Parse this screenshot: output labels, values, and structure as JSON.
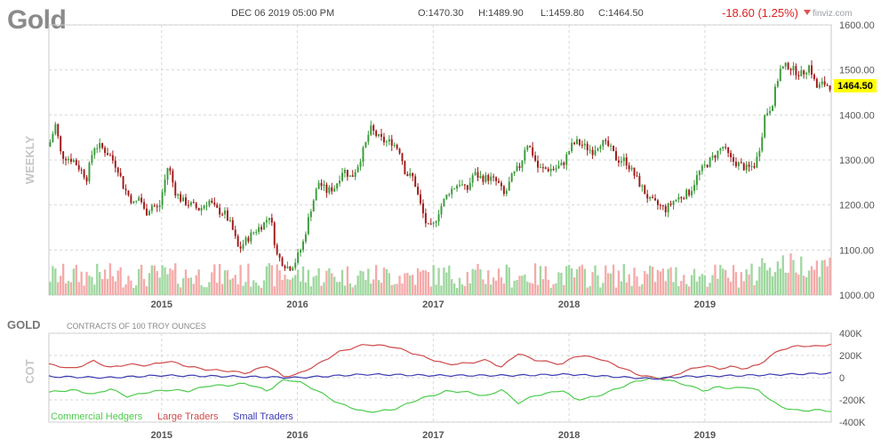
{
  "header": {
    "title": "Gold",
    "datetime": "DEC 06 2019 05:00 PM",
    "open": "O:1470.30",
    "high": "H:1489.90",
    "low": "L:1459.80",
    "close": "C:1464.50",
    "change": "-18.60 (1.25%)",
    "source": "finviz.com"
  },
  "colors": {
    "up": "#3a9a3a",
    "down": "#a01818",
    "vol_up": "#9fd79f",
    "vol_down": "#f5aaaa",
    "commercial": "#4ccc4c",
    "large": "#d04a4a",
    "small": "#3a3ab0",
    "price_tag": "#ffff00"
  },
  "chart_data": [
    {
      "type": "candlestick",
      "timeframe_label": "WEEKLY",
      "x_ticks": [
        "2015",
        "2016",
        "2017",
        "2018",
        "2019"
      ],
      "x_tick_dates": [
        2015.0,
        2016.0,
        2017.0,
        2018.0,
        2019.0
      ],
      "xlim": [
        2014.17,
        2019.93
      ],
      "y_ticks": [
        "1600.00",
        "1500.00",
        "1400.00",
        "1300.00",
        "1200.00",
        "1100.00",
        "1000.00"
      ],
      "ylim": [
        1000,
        1600
      ],
      "last_price_label": "1464.50",
      "close_price_path": [
        [
          2014.17,
          1330
        ],
        [
          2014.22,
          1380
        ],
        [
          2014.26,
          1310
        ],
        [
          2014.35,
          1300
        ],
        [
          2014.4,
          1280
        ],
        [
          2014.45,
          1260
        ],
        [
          2014.5,
          1330
        ],
        [
          2014.55,
          1330
        ],
        [
          2014.62,
          1310
        ],
        [
          2014.68,
          1280
        ],
        [
          2014.72,
          1240
        ],
        [
          2014.8,
          1200
        ],
        [
          2014.84,
          1220
        ],
        [
          2014.88,
          1180
        ],
        [
          2014.93,
          1200
        ],
        [
          2014.98,
          1190
        ],
        [
          2015.05,
          1290
        ],
        [
          2015.1,
          1230
        ],
        [
          2015.15,
          1210
        ],
        [
          2015.22,
          1200
        ],
        [
          2015.28,
          1190
        ],
        [
          2015.35,
          1210
        ],
        [
          2015.4,
          1190
        ],
        [
          2015.47,
          1180
        ],
        [
          2015.52,
          1150
        ],
        [
          2015.57,
          1100
        ],
        [
          2015.62,
          1120
        ],
        [
          2015.68,
          1140
        ],
        [
          2015.72,
          1150
        ],
        [
          2015.76,
          1160
        ],
        [
          2015.8,
          1180
        ],
        [
          2015.85,
          1090
        ],
        [
          2015.9,
          1070
        ],
        [
          2015.94,
          1060
        ],
        [
          2015.98,
          1070
        ],
        [
          2016.04,
          1110
        ],
        [
          2016.1,
          1190
        ],
        [
          2016.16,
          1250
        ],
        [
          2016.22,
          1230
        ],
        [
          2016.28,
          1240
        ],
        [
          2016.34,
          1280
        ],
        [
          2016.4,
          1260
        ],
        [
          2016.45,
          1290
        ],
        [
          2016.5,
          1330
        ],
        [
          2016.54,
          1370
        ],
        [
          2016.6,
          1350
        ],
        [
          2016.65,
          1340
        ],
        [
          2016.7,
          1340
        ],
        [
          2016.76,
          1320
        ],
        [
          2016.8,
          1270
        ],
        [
          2016.86,
          1260
        ],
        [
          2016.9,
          1210
        ],
        [
          2016.96,
          1150
        ],
        [
          2017.0,
          1150
        ],
        [
          2017.05,
          1190
        ],
        [
          2017.12,
          1230
        ],
        [
          2017.2,
          1250
        ],
        [
          2017.25,
          1230
        ],
        [
          2017.3,
          1270
        ],
        [
          2017.36,
          1260
        ],
        [
          2017.42,
          1260
        ],
        [
          2017.48,
          1250
        ],
        [
          2017.53,
          1220
        ],
        [
          2017.58,
          1260
        ],
        [
          2017.65,
          1290
        ],
        [
          2017.69,
          1340
        ],
        [
          2017.73,
          1320
        ],
        [
          2017.78,
          1280
        ],
        [
          2017.84,
          1280
        ],
        [
          2017.9,
          1280
        ],
        [
          2017.96,
          1290
        ],
        [
          2018.02,
          1330
        ],
        [
          2018.06,
          1340
        ],
        [
          2018.12,
          1330
        ],
        [
          2018.18,
          1320
        ],
        [
          2018.24,
          1340
        ],
        [
          2018.3,
          1330
        ],
        [
          2018.36,
          1300
        ],
        [
          2018.42,
          1300
        ],
        [
          2018.48,
          1270
        ],
        [
          2018.54,
          1240
        ],
        [
          2018.6,
          1210
        ],
        [
          2018.66,
          1200
        ],
        [
          2018.72,
          1190
        ],
        [
          2018.78,
          1210
        ],
        [
          2018.84,
          1220
        ],
        [
          2018.9,
          1230
        ],
        [
          2018.96,
          1270
        ],
        [
          2019.02,
          1290
        ],
        [
          2019.08,
          1310
        ],
        [
          2019.14,
          1330
        ],
        [
          2019.2,
          1300
        ],
        [
          2019.26,
          1290
        ],
        [
          2019.32,
          1280
        ],
        [
          2019.38,
          1290
        ],
        [
          2019.42,
          1340
        ],
        [
          2019.45,
          1400
        ],
        [
          2019.5,
          1420
        ],
        [
          2019.56,
          1500
        ],
        [
          2019.62,
          1510
        ],
        [
          2019.66,
          1500
        ],
        [
          2019.72,
          1490
        ],
        [
          2019.78,
          1510
        ],
        [
          2019.83,
          1460
        ],
        [
          2019.88,
          1470
        ],
        [
          2019.93,
          1464.5
        ]
      ]
    },
    {
      "type": "line",
      "panel_title": "GOLD",
      "subtitle": "CONTRACTS OF 100 TROY OUNCES",
      "side_label": "COT",
      "y_ticks": [
        "400K",
        "200K",
        "0",
        "-200K",
        "-400K"
      ],
      "ylim": [
        -400,
        400
      ],
      "x_ticks": [
        "2015",
        "2016",
        "2017",
        "2018",
        "2019"
      ],
      "x_tick_dates": [
        2015.0,
        2016.0,
        2017.0,
        2018.0,
        2019.0
      ],
      "xlim": [
        2014.17,
        2019.93
      ],
      "series": [
        {
          "name": "Commercial Hedgers",
          "points": [
            [
              2014.17,
              -130
            ],
            [
              2014.35,
              -110
            ],
            [
              2014.5,
              -150
            ],
            [
              2014.62,
              -100
            ],
            [
              2014.75,
              -170
            ],
            [
              2014.9,
              -130
            ],
            [
              2015.05,
              -110
            ],
            [
              2015.2,
              -120
            ],
            [
              2015.35,
              -70
            ],
            [
              2015.5,
              -70
            ],
            [
              2015.62,
              -50
            ],
            [
              2015.78,
              -120
            ],
            [
              2015.9,
              -20
            ],
            [
              2016.0,
              -30
            ],
            [
              2016.15,
              -120
            ],
            [
              2016.3,
              -230
            ],
            [
              2016.5,
              -310
            ],
            [
              2016.7,
              -290
            ],
            [
              2016.9,
              -190
            ],
            [
              2017.0,
              -160
            ],
            [
              2017.1,
              -120
            ],
            [
              2017.25,
              -130
            ],
            [
              2017.4,
              -170
            ],
            [
              2017.5,
              -100
            ],
            [
              2017.62,
              -230
            ],
            [
              2017.75,
              -160
            ],
            [
              2017.85,
              -140
            ],
            [
              2017.95,
              -110
            ],
            [
              2018.05,
              -200
            ],
            [
              2018.2,
              -170
            ],
            [
              2018.35,
              -100
            ],
            [
              2018.5,
              -30
            ],
            [
              2018.62,
              0
            ],
            [
              2018.72,
              -20
            ],
            [
              2018.85,
              -60
            ],
            [
              2019.0,
              -120
            ],
            [
              2019.1,
              -80
            ],
            [
              2019.2,
              -100
            ],
            [
              2019.3,
              -80
            ],
            [
              2019.4,
              -120
            ],
            [
              2019.55,
              -260
            ],
            [
              2019.7,
              -300
            ],
            [
              2019.8,
              -290
            ],
            [
              2019.93,
              -300
            ]
          ]
        },
        {
          "name": "Large Traders",
          "points": [
            [
              2014.17,
              120
            ],
            [
              2014.35,
              80
            ],
            [
              2014.5,
              150
            ],
            [
              2014.62,
              90
            ],
            [
              2014.75,
              120
            ],
            [
              2014.9,
              110
            ],
            [
              2015.05,
              150
            ],
            [
              2015.2,
              100
            ],
            [
              2015.35,
              70
            ],
            [
              2015.5,
              60
            ],
            [
              2015.62,
              40
            ],
            [
              2015.78,
              110
            ],
            [
              2015.9,
              10
            ],
            [
              2016.0,
              30
            ],
            [
              2016.15,
              120
            ],
            [
              2016.3,
              230
            ],
            [
              2016.5,
              300
            ],
            [
              2016.7,
              280
            ],
            [
              2016.9,
              200
            ],
            [
              2017.0,
              160
            ],
            [
              2017.1,
              120
            ],
            [
              2017.25,
              130
            ],
            [
              2017.4,
              160
            ],
            [
              2017.5,
              90
            ],
            [
              2017.62,
              220
            ],
            [
              2017.75,
              160
            ],
            [
              2017.85,
              140
            ],
            [
              2017.95,
              120
            ],
            [
              2018.05,
              200
            ],
            [
              2018.2,
              180
            ],
            [
              2018.35,
              110
            ],
            [
              2018.5,
              30
            ],
            [
              2018.62,
              0
            ],
            [
              2018.72,
              -10
            ],
            [
              2018.85,
              60
            ],
            [
              2019.0,
              110
            ],
            [
              2019.1,
              80
            ],
            [
              2019.2,
              100
            ],
            [
              2019.3,
              80
            ],
            [
              2019.4,
              120
            ],
            [
              2019.55,
              250
            ],
            [
              2019.7,
              290
            ],
            [
              2019.8,
              280
            ],
            [
              2019.93,
              300
            ]
          ]
        },
        {
          "name": "Small Traders",
          "points": [
            [
              2014.17,
              10
            ],
            [
              2014.6,
              0
            ],
            [
              2015.0,
              20
            ],
            [
              2015.6,
              10
            ],
            [
              2016.0,
              0
            ],
            [
              2016.5,
              30
            ],
            [
              2017.0,
              20
            ],
            [
              2017.6,
              20
            ],
            [
              2018.0,
              30
            ],
            [
              2018.62,
              -10
            ],
            [
              2018.85,
              10
            ],
            [
              2019.3,
              20
            ],
            [
              2019.93,
              40
            ]
          ]
        }
      ]
    }
  ]
}
